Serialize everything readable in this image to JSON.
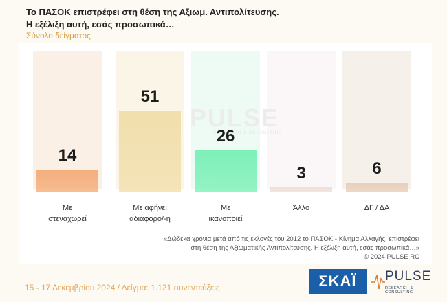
{
  "title_line1": "Το ΠΑΣΟΚ επιστρέφει στη θέση της Αξιωμ. Αντιπολίτευσης.",
  "title_line2": "Η εξέλιξη αυτή, εσάς προσωπικά…",
  "subtitle": "Σύνολο δείγματος",
  "watermark": "PULSE",
  "watermark_sub": "RESEARCH & CONSULTING",
  "chart_data": {
    "type": "bar",
    "categories": [
      [
        "Με",
        "στεναχωρεί"
      ],
      [
        "Με αφήνει",
        "αδιάφορο/-η"
      ],
      [
        "Με",
        "ικανοποιεί"
      ],
      [
        "Άλλο"
      ],
      [
        "ΔΓ / ΔΑ"
      ]
    ],
    "values": [
      14,
      51,
      26,
      3,
      6
    ],
    "ylim": [
      0,
      60
    ],
    "colors": [
      "#f4ae7c",
      "#f1dfac",
      "#7ef0b8",
      "#efe0d8",
      "#e8cfba"
    ],
    "column_backgrounds": [
      "#fbf0e6",
      "#fbf5e8",
      "#eefbf4",
      "#fbf6f8",
      "#f6f0ea"
    ]
  },
  "note_lines": [
    "«Δώδεκα χρόνια μετά από τις εκλογές του 2012 το ΠΑΣΟΚ - Κίνημα Αλλαγής, επιστρέφει",
    "στη θέση της Αξιωματικής Αντιπολίτευσης. Η εξέλιξη αυτή, εσάς προσωπικά…»",
    "©  2024  PULSE RC"
  ],
  "footer": "15 - 17 Δεκεμβρίου 2024  /  Δείγμα:  1.121 συνεντεύξεις",
  "logos": {
    "skai": "ΣΚΑΪ",
    "pulse": "PULSE",
    "pulse_sub": "RESEARCH & CONSULTING",
    "skai_color": "#1a5fa8",
    "pulse_color": "#2c3e5a"
  }
}
